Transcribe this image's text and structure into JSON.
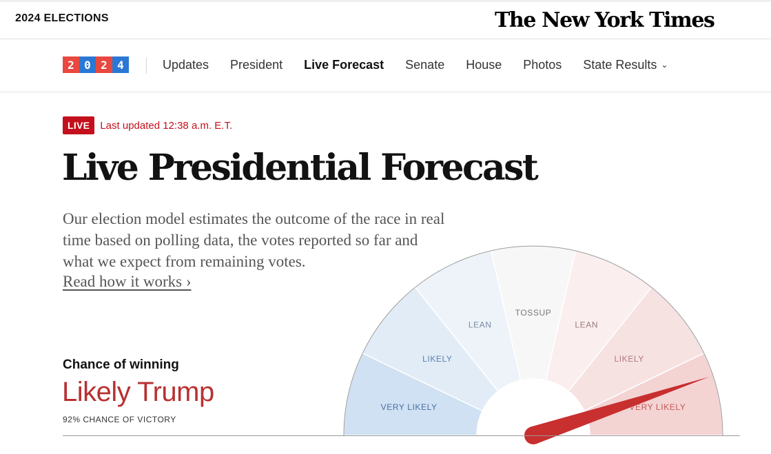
{
  "header": {
    "section_label": "2024 ELECTIONS",
    "masthead": "The New York Times"
  },
  "nav": {
    "logo_digits": [
      "2",
      "0",
      "2",
      "4"
    ],
    "logo_colors": [
      "#e8483f",
      "#2a78d4",
      "#e8483f",
      "#2a78d4"
    ],
    "items": [
      {
        "label": "Updates"
      },
      {
        "label": "President"
      },
      {
        "label": "Live Forecast",
        "active": true
      },
      {
        "label": "Senate"
      },
      {
        "label": "House"
      },
      {
        "label": "Photos"
      },
      {
        "label": "State Results",
        "dropdown": true
      }
    ]
  },
  "status": {
    "badge": "LIVE",
    "updated": "Last updated 12:38 a.m. E.T."
  },
  "headline": "Live Presidential Forecast",
  "dek": "Our election model estimates the outcome of the race in real time based on polling data, the votes reported so far and what we expect from remaining votes.",
  "read_link": "Read how it works ›",
  "chance": {
    "label": "Chance of winning",
    "value": "Likely Trump",
    "pct_text": "92% CHANCE OF VICTORY"
  },
  "gauge": {
    "segments": [
      {
        "label": "VERY LIKELY",
        "color": "#cfe1f2",
        "text_color": "#4a6fa5"
      },
      {
        "label": "LIKELY",
        "color": "#e1ecf7",
        "text_color": "#5b7eaa"
      },
      {
        "label": "LEAN",
        "color": "#eef3fa",
        "text_color": "#7a8ba0"
      },
      {
        "label": "TOSSUP",
        "color": "#f7f7f7",
        "text_color": "#777777"
      },
      {
        "label": "LEAN",
        "color": "#fbeeee",
        "text_color": "#9a7a7a"
      },
      {
        "label": "LIKELY",
        "color": "#f7e2e2",
        "text_color": "#b07878"
      },
      {
        "label": "VERY LIKELY",
        "color": "#f4d3d3",
        "text_color": "#c45858"
      }
    ],
    "needle_value": 0.92,
    "needle_color": "#c82f2f"
  }
}
